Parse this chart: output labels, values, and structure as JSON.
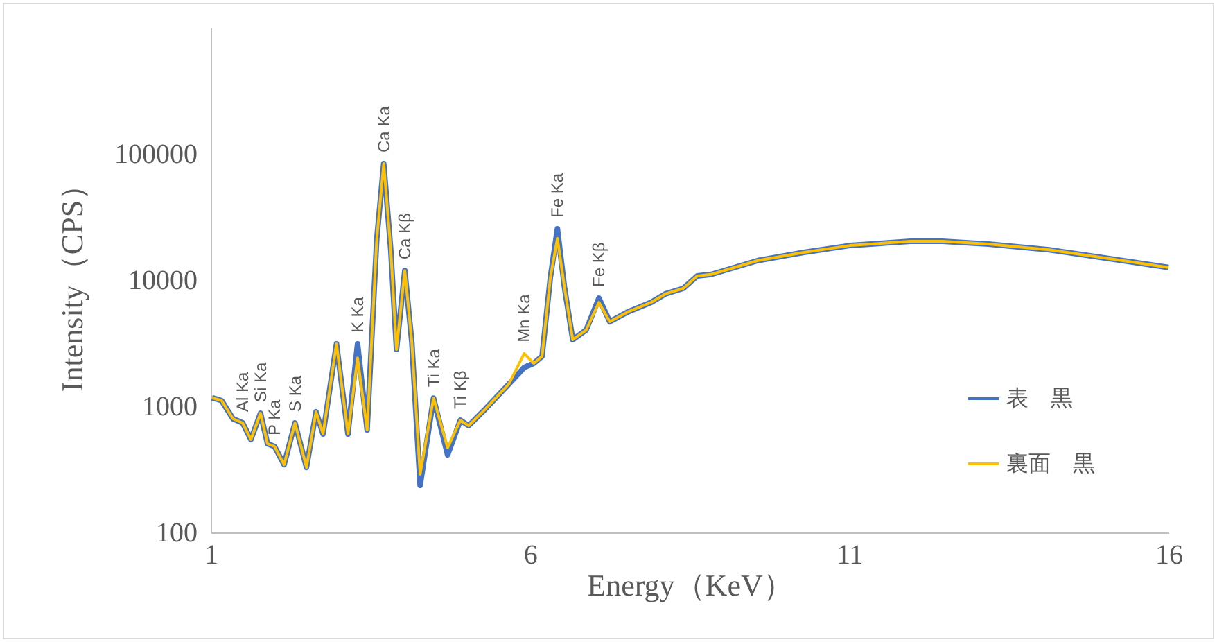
{
  "chart_data": {
    "type": "line",
    "xlabel": "Energy（KeV）",
    "ylabel": "Intensity（CPS）",
    "x": [
      1.02,
      1.17,
      1.35,
      1.5,
      1.63,
      1.78,
      1.89,
      2.0,
      2.15,
      2.32,
      2.5,
      2.65,
      2.76,
      2.97,
      3.15,
      3.3,
      3.45,
      3.6,
      3.71,
      3.82,
      3.91,
      4.04,
      4.15,
      4.28,
      4.49,
      4.71,
      4.91,
      5.04,
      5.3,
      5.67,
      5.91,
      6.06,
      6.19,
      6.32,
      6.43,
      6.54,
      6.67,
      6.88,
      7.08,
      7.25,
      7.53,
      7.9,
      8.12,
      8.4,
      8.62,
      8.84,
      9.57,
      10.29,
      11.01,
      11.96,
      12.46,
      13.18,
      14.13,
      15.0,
      16.0
    ],
    "series": [
      {
        "name": "表　黒",
        "color": "#4472c4",
        "values": [
          1170,
          1110,
          796,
          738,
          545,
          881,
          505,
          480,
          345,
          738,
          328,
          903,
          603,
          3120,
          603,
          3120,
          650,
          20800,
          83800,
          17400,
          2820,
          11900,
          3200,
          236,
          1160,
          412,
          776,
          702,
          950,
          1500,
          2030,
          2190,
          2490,
          10500,
          25500,
          8810,
          3370,
          4020,
          7200,
          4680,
          5590,
          6670,
          7770,
          8590,
          10800,
          11100,
          14300,
          16600,
          18800,
          20300,
          20300,
          19300,
          17400,
          15000,
          12600
        ]
      },
      {
        "name": "裏面　黒",
        "color": "#ffc000",
        "values": [
          1170,
          1110,
          796,
          738,
          545,
          881,
          505,
          480,
          345,
          738,
          328,
          903,
          603,
          3120,
          603,
          2420,
          650,
          20800,
          83800,
          17400,
          2820,
          11900,
          3200,
          289,
          1160,
          468,
          776,
          702,
          950,
          1500,
          2620,
          2190,
          2490,
          10500,
          21400,
          8810,
          3370,
          4020,
          6670,
          4680,
          5590,
          6670,
          7770,
          8590,
          10800,
          11100,
          14300,
          16600,
          18800,
          20300,
          20300,
          19300,
          17400,
          15000,
          12600
        ]
      }
    ],
    "log": true,
    "xlim": [
      1,
      16
    ],
    "xticks": [
      1,
      6,
      11,
      16
    ],
    "ylim": [
      100,
      1000000
    ],
    "yticks": [
      100,
      1000,
      10000,
      100000
    ],
    "grid": false,
    "legend": "bottom right",
    "annotations": [
      {
        "text": "Al Ka",
        "x": 1.5,
        "y": 738
      },
      {
        "text": "Si Ka",
        "x": 1.78,
        "y": 881
      },
      {
        "text": "P Ka",
        "x": 2.0,
        "y": 480
      },
      {
        "text": "S Ka",
        "x": 2.32,
        "y": 738
      },
      {
        "text": "K Ka",
        "x": 3.3,
        "y": 3120
      },
      {
        "text": "Ca Ka",
        "x": 3.71,
        "y": 83800
      },
      {
        "text": "Ca Kβ",
        "x": 4.04,
        "y": 11900
      },
      {
        "text": "Ti Ka",
        "x": 4.49,
        "y": 1160
      },
      {
        "text": "Ti Kβ",
        "x": 4.91,
        "y": 776
      },
      {
        "text": "Mn Ka",
        "x": 5.91,
        "y": 2620
      },
      {
        "text": "Fe Ka",
        "x": 6.43,
        "y": 25500
      },
      {
        "text": "Fe Kβ",
        "x": 7.08,
        "y": 7200
      }
    ]
  }
}
